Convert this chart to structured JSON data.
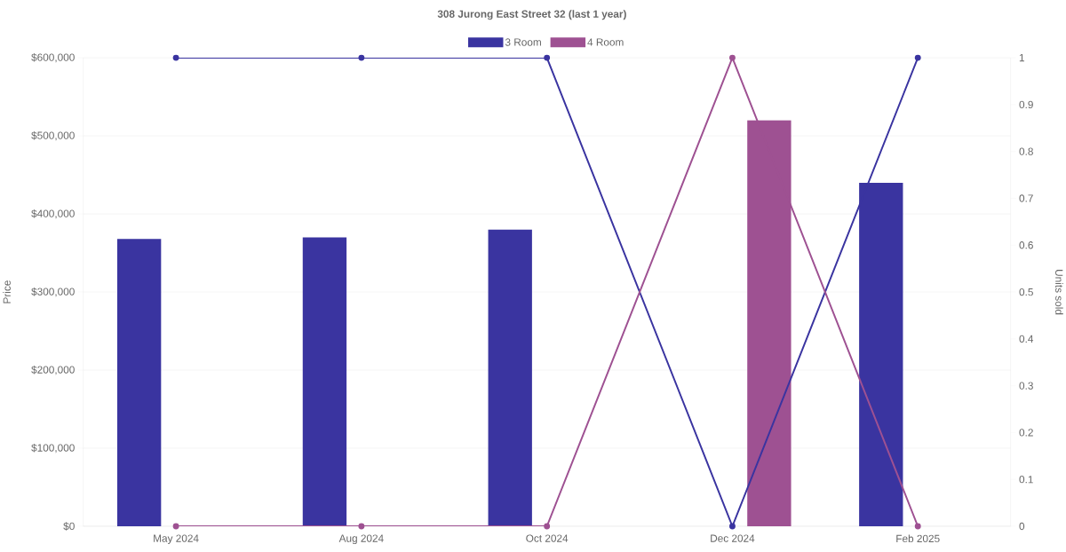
{
  "chart_data": {
    "type": "bar",
    "title": "308 Jurong East Street 32 (last 1 year)",
    "categories": [
      "May 2024",
      "Aug 2024",
      "Oct 2024",
      "Dec 2024",
      "Feb 2025"
    ],
    "ylabel": "Price",
    "y2label": "Units sold",
    "ylim": [
      0,
      600000
    ],
    "yticks": [
      {
        "value": 0,
        "label": "$0"
      },
      {
        "value": 100000,
        "label": "$100,000"
      },
      {
        "value": 200000,
        "label": "$200,000"
      },
      {
        "value": 300000,
        "label": "$300,000"
      },
      {
        "value": 400000,
        "label": "$400,000"
      },
      {
        "value": 500000,
        "label": "$500,000"
      },
      {
        "value": 600000,
        "label": "$600,000"
      }
    ],
    "y2lim": [
      0,
      1
    ],
    "y2ticks": [
      0,
      0.1,
      0.2,
      0.3,
      0.4,
      0.5,
      0.6,
      0.7,
      0.8,
      0.9,
      1
    ],
    "grid": "y",
    "legend": "top",
    "marker": "circle",
    "series": [
      {
        "name": "3 Room",
        "color": "#3a34a0",
        "values": [
          368000,
          370000,
          380000,
          null,
          440000
        ]
      },
      {
        "name": "4 Room",
        "color": "#9e5192",
        "values": [
          null,
          null,
          null,
          520000,
          null
        ]
      },
      {
        "type": "line",
        "axis": "y2",
        "color": "#3a34a0",
        "values": [
          1,
          1,
          1,
          0,
          1
        ]
      },
      {
        "type": "line",
        "axis": "y2",
        "color": "#9e5192",
        "values": [
          0,
          0,
          0,
          1,
          0
        ]
      }
    ]
  }
}
